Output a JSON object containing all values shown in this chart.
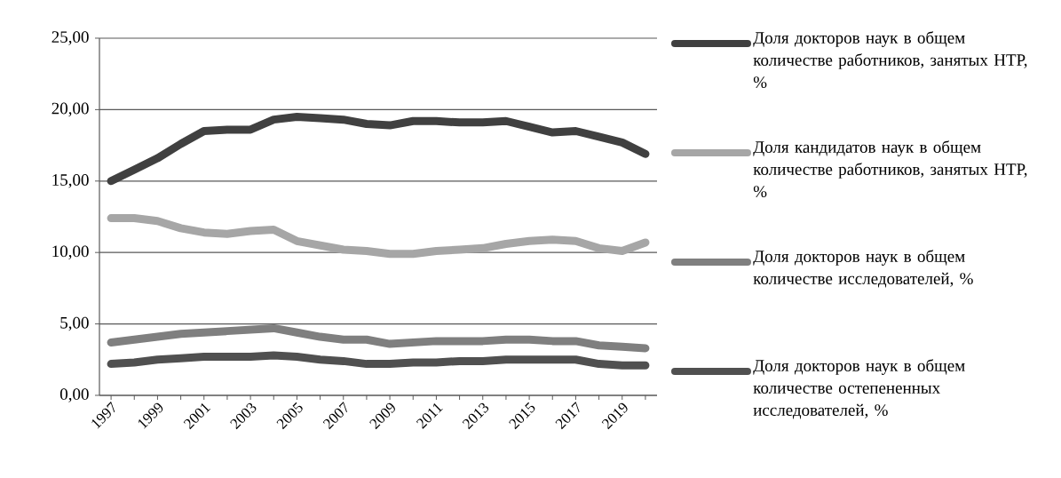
{
  "chart_data": {
    "type": "line",
    "categories": [
      "1997",
      null,
      "1999",
      null,
      "2001",
      null,
      "2003",
      null,
      "2005",
      null,
      "2007",
      null,
      "2009",
      null,
      "2011",
      null,
      "2013",
      null,
      "2015",
      null,
      "2017",
      null,
      "2019",
      null
    ],
    "series": [
      {
        "name": "Доля докторов наук в общем количестве работников, занятых НТР, %",
        "color": "#404040",
        "values": [
          15.0,
          15.8,
          16.6,
          17.6,
          18.5,
          18.6,
          18.6,
          19.3,
          19.5,
          19.4,
          19.3,
          19.0,
          18.9,
          19.2,
          19.2,
          19.1,
          19.1,
          19.2,
          18.8,
          18.4,
          18.5,
          18.1,
          17.7,
          16.9
        ]
      },
      {
        "name": "Доля кандидатов наук в общем количестве работников, занятых НТР, %",
        "color": "#a6a6a6",
        "values": [
          12.4,
          12.4,
          12.2,
          11.7,
          11.4,
          11.3,
          11.5,
          11.6,
          10.8,
          10.5,
          10.2,
          10.1,
          9.9,
          9.9,
          10.1,
          10.2,
          10.3,
          10.6,
          10.8,
          10.9,
          10.8,
          10.3,
          10.1,
          10.7
        ]
      },
      {
        "name": "Доля докторов наук в общем количестве исследователей, %",
        "color": "#7f7f7f",
        "values": [
          3.7,
          3.9,
          4.1,
          4.3,
          4.4,
          4.5,
          4.6,
          4.7,
          4.4,
          4.1,
          3.9,
          3.9,
          3.6,
          3.7,
          3.8,
          3.8,
          3.8,
          3.9,
          3.9,
          3.8,
          3.8,
          3.5,
          3.4,
          3.3
        ]
      },
      {
        "name": "Доля докторов наук в общем количестве остепененных исследователей, %",
        "color": "#505050",
        "values": [
          2.2,
          2.3,
          2.5,
          2.6,
          2.7,
          2.7,
          2.7,
          2.8,
          2.7,
          2.5,
          2.4,
          2.2,
          2.2,
          2.3,
          2.3,
          2.4,
          2.4,
          2.5,
          2.5,
          2.5,
          2.5,
          2.2,
          2.1,
          2.1
        ]
      }
    ],
    "ylim": [
      0,
      25
    ],
    "yticks": [
      {
        "value": 0,
        "label": "0,00"
      },
      {
        "value": 5,
        "label": "5,00"
      },
      {
        "value": 10,
        "label": "10,00"
      },
      {
        "value": 15,
        "label": "15,00"
      },
      {
        "value": 20,
        "label": "20,00"
      },
      {
        "value": 25,
        "label": "25,00"
      }
    ],
    "grid": "y",
    "legend": "right"
  }
}
